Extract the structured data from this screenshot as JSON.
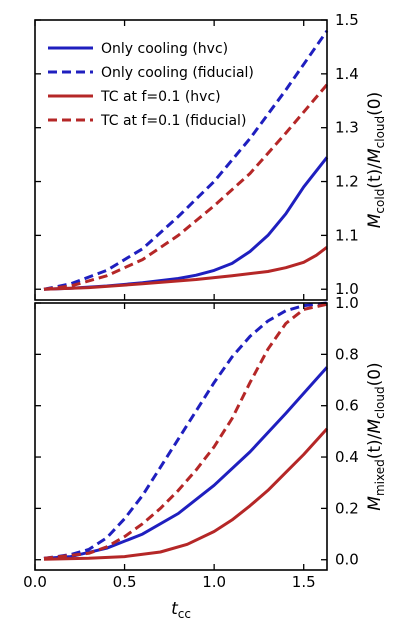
{
  "colors": {
    "hvc_blue": "#1f1fbf",
    "tc_red": "#b52727"
  },
  "chart_data": [
    {
      "type": "line",
      "panel": "top",
      "ylabel": "M_cold(t)/M_cloud(0)",
      "ylabel_parts": {
        "main": "M",
        "sub": "cold",
        "middle": "(t)/",
        "main2": "M",
        "sub2": "cloud",
        "end": "(0)"
      },
      "xlim": [
        0.0,
        1.63
      ],
      "ylim": [
        0.98,
        1.5
      ],
      "yticks": [
        1.0,
        1.1,
        1.2,
        1.3,
        1.4,
        1.5
      ],
      "ytick_labels": [
        "1.0",
        "1.1",
        "1.2",
        "1.3",
        "1.4",
        "1.5"
      ],
      "yaxis_position": "right",
      "legend": {
        "position": "top-left"
      },
      "series": [
        {
          "name": "Only cooling (hvc)",
          "color": "#1f1fbf",
          "style": "solid",
          "x": [
            0.05,
            0.2,
            0.4,
            0.6,
            0.8,
            0.9,
            1.0,
            1.1,
            1.2,
            1.3,
            1.4,
            1.5,
            1.63
          ],
          "y": [
            1.0,
            1.002,
            1.006,
            1.012,
            1.02,
            1.026,
            1.035,
            1.048,
            1.07,
            1.1,
            1.14,
            1.19,
            1.245
          ]
        },
        {
          "name": "Only cooling (fiducial)",
          "color": "#1f1fbf",
          "style": "dashed",
          "x": [
            0.05,
            0.2,
            0.4,
            0.6,
            0.8,
            1.0,
            1.2,
            1.4,
            1.63
          ],
          "y": [
            1.0,
            1.01,
            1.035,
            1.075,
            1.135,
            1.2,
            1.28,
            1.37,
            1.48
          ]
        },
        {
          "name": "TC at f=0.1 (hvc)",
          "color": "#b52727",
          "style": "solid",
          "x": [
            0.05,
            0.3,
            0.6,
            0.9,
            1.1,
            1.3,
            1.4,
            1.5,
            1.57,
            1.63
          ],
          "y": [
            1.0,
            1.003,
            1.01,
            1.018,
            1.025,
            1.033,
            1.04,
            1.05,
            1.063,
            1.078
          ]
        },
        {
          "name": "TC at f=0.1 (fiducial)",
          "color": "#b52727",
          "style": "dashed",
          "x": [
            0.05,
            0.2,
            0.4,
            0.6,
            0.8,
            1.0,
            1.2,
            1.4,
            1.63
          ],
          "y": [
            1.0,
            1.006,
            1.025,
            1.055,
            1.1,
            1.155,
            1.215,
            1.29,
            1.38
          ]
        }
      ]
    },
    {
      "type": "line",
      "panel": "bottom",
      "xlabel": "t_cc",
      "xlabel_parts": {
        "main": "t",
        "sub": "cc"
      },
      "ylabel": "M_mixed(t)/M_cloud(0)",
      "ylabel_parts": {
        "main": "M",
        "sub": "mixed",
        "middle": "(t)/",
        "main2": "M",
        "sub2": "cloud",
        "end": "(0)"
      },
      "xlim": [
        0.0,
        1.63
      ],
      "ylim": [
        -0.04,
        1.0
      ],
      "xticks": [
        0.0,
        0.5,
        1.0,
        1.5
      ],
      "xtick_labels": [
        "0.0",
        "0.5",
        "1.0",
        "1.5"
      ],
      "yticks": [
        0.0,
        0.2,
        0.4,
        0.6,
        0.8,
        1.0
      ],
      "ytick_labels": [
        "0.0",
        "0.2",
        "0.4",
        "0.6",
        "0.8",
        "1.0"
      ],
      "yaxis_position": "right",
      "series": [
        {
          "name": "Only cooling (hvc)",
          "color": "#1f1fbf",
          "style": "solid",
          "x": [
            0.05,
            0.2,
            0.4,
            0.6,
            0.8,
            1.0,
            1.2,
            1.4,
            1.63
          ],
          "y": [
            0.005,
            0.012,
            0.045,
            0.1,
            0.18,
            0.29,
            0.42,
            0.57,
            0.75
          ]
        },
        {
          "name": "Only cooling (fiducial)",
          "color": "#1f1fbf",
          "style": "dashed",
          "x": [
            0.05,
            0.2,
            0.3,
            0.4,
            0.5,
            0.6,
            0.7,
            0.8,
            0.9,
            1.0,
            1.1,
            1.2,
            1.3,
            1.4,
            1.5,
            1.63
          ],
          "y": [
            0.005,
            0.02,
            0.04,
            0.085,
            0.16,
            0.25,
            0.36,
            0.47,
            0.58,
            0.69,
            0.79,
            0.87,
            0.93,
            0.97,
            0.99,
            1.0
          ]
        },
        {
          "name": "TC at f=0.1 (hvc)",
          "color": "#b52727",
          "style": "solid",
          "x": [
            0.05,
            0.3,
            0.5,
            0.7,
            0.85,
            1.0,
            1.1,
            1.2,
            1.3,
            1.4,
            1.5,
            1.63
          ],
          "y": [
            0.002,
            0.006,
            0.012,
            0.03,
            0.06,
            0.11,
            0.155,
            0.21,
            0.27,
            0.34,
            0.41,
            0.51
          ]
        },
        {
          "name": "TC at f=0.1 (fiducial)",
          "color": "#b52727",
          "style": "dashed",
          "x": [
            0.05,
            0.3,
            0.4,
            0.5,
            0.6,
            0.7,
            0.8,
            0.9,
            1.0,
            1.1,
            1.2,
            1.3,
            1.4,
            1.5,
            1.63
          ],
          "y": [
            0.005,
            0.025,
            0.05,
            0.09,
            0.14,
            0.2,
            0.27,
            0.35,
            0.44,
            0.55,
            0.69,
            0.82,
            0.92,
            0.975,
            0.995
          ]
        }
      ]
    }
  ]
}
